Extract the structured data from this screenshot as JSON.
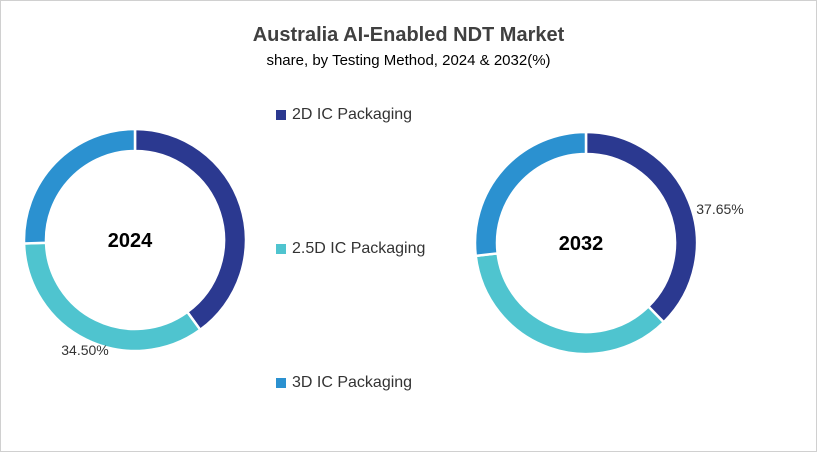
{
  "chart_data": [
    {
      "type": "pie",
      "variant": "donut",
      "title": "Australia AI-Enabled NDT Market",
      "subtitle": "share, by Testing Method, 2024 & 2032(%)",
      "center_label": "2024",
      "categories": [
        "2D IC Packaging",
        "2.5D IC Packaging",
        "3D IC Packaging"
      ],
      "values": [
        40.0,
        34.5,
        25.5
      ],
      "data_labels": [
        "",
        "34.50%",
        ""
      ]
    },
    {
      "type": "pie",
      "variant": "donut",
      "center_label": "2032",
      "categories": [
        "2D IC Packaging",
        "2.5D IC Packaging",
        "3D IC Packaging"
      ],
      "values": [
        37.65,
        35.5,
        26.85
      ],
      "data_labels": [
        "37.65%",
        "",
        ""
      ]
    }
  ],
  "header": {
    "title": "Australia AI-Enabled NDT Market",
    "subtitle": "share, by Testing Method, 2024 & 2032(%)"
  },
  "legend": [
    {
      "label": "2D IC Packaging",
      "color": "#2b3990"
    },
    {
      "label": "2.5D IC Packaging",
      "color": "#4fc4cf"
    },
    {
      "label": "3D IC Packaging",
      "color": "#2b91d0"
    }
  ],
  "colors": [
    "#2b3990",
    "#4fc4cf",
    "#2b91d0"
  ]
}
